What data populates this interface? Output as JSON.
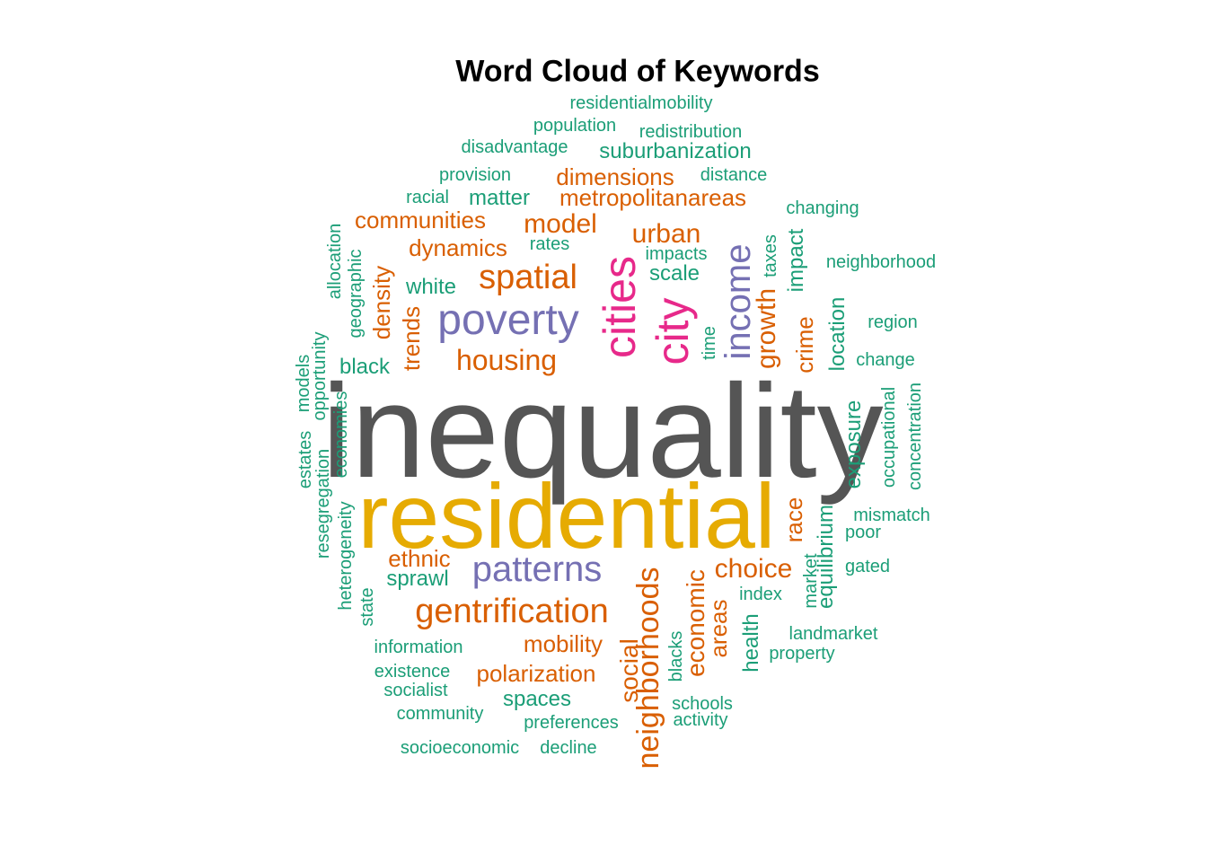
{
  "chart_data": {
    "type": "wordcloud",
    "title": "Word Cloud of Keywords",
    "palette": {
      "green": "#1b9e77",
      "orange": "#d95f02",
      "purple": "#7570b3",
      "pink": "#e7298a",
      "gold": "#e6ab02",
      "gray": "#555555"
    },
    "words": [
      {
        "text": "inequality",
        "tier": 7,
        "color": "gray",
        "vertical": false
      },
      {
        "text": "residential",
        "tier": 6,
        "color": "gold",
        "vertical": false
      },
      {
        "text": "cities",
        "tier": 5,
        "color": "pink",
        "vertical": true
      },
      {
        "text": "city",
        "tier": 5,
        "color": "pink",
        "vertical": true
      },
      {
        "text": "poverty",
        "tier": 4,
        "color": "purple",
        "vertical": false
      },
      {
        "text": "income",
        "tier": 4,
        "color": "purple",
        "vertical": true
      },
      {
        "text": "patterns",
        "tier": 4,
        "color": "purple",
        "vertical": false
      },
      {
        "text": "gentrification",
        "tier": 3,
        "color": "orange",
        "vertical": false
      },
      {
        "text": "neighborhoods",
        "tier": 3,
        "color": "orange",
        "vertical": true
      },
      {
        "text": "spatial",
        "tier": 3,
        "color": "orange",
        "vertical": false
      },
      {
        "text": "housing",
        "tier": 2,
        "color": "orange",
        "vertical": false
      },
      {
        "text": "model",
        "tier": 2,
        "color": "orange",
        "vertical": false
      },
      {
        "text": "urban",
        "tier": 2,
        "color": "orange",
        "vertical": false
      },
      {
        "text": "growth",
        "tier": 2,
        "color": "orange",
        "vertical": true
      },
      {
        "text": "choice",
        "tier": 2,
        "color": "orange",
        "vertical": false
      },
      {
        "text": "economic",
        "tier": 2,
        "color": "orange",
        "vertical": true
      },
      {
        "text": "social",
        "tier": 2,
        "color": "orange",
        "vertical": true
      },
      {
        "text": "dimensions",
        "tier": 2,
        "color": "orange",
        "vertical": false
      },
      {
        "text": "metropolitanareas",
        "tier": 2,
        "color": "orange",
        "vertical": false
      },
      {
        "text": "communities",
        "tier": 2,
        "color": "orange",
        "vertical": false
      },
      {
        "text": "dynamics",
        "tier": 2,
        "color": "orange",
        "vertical": false
      },
      {
        "text": "density",
        "tier": 2,
        "color": "orange",
        "vertical": true
      },
      {
        "text": "trends",
        "tier": 2,
        "color": "orange",
        "vertical": true
      },
      {
        "text": "crime",
        "tier": 2,
        "color": "orange",
        "vertical": true
      },
      {
        "text": "race",
        "tier": 2,
        "color": "orange",
        "vertical": true
      },
      {
        "text": "ethnic",
        "tier": 2,
        "color": "orange",
        "vertical": false
      },
      {
        "text": "mobility",
        "tier": 2,
        "color": "orange",
        "vertical": false
      },
      {
        "text": "polarization",
        "tier": 2,
        "color": "orange",
        "vertical": false
      },
      {
        "text": "areas",
        "tier": 2,
        "color": "orange",
        "vertical": true
      },
      {
        "text": "residentialmobility",
        "tier": 1,
        "color": "green",
        "vertical": false
      },
      {
        "text": "population",
        "tier": 1,
        "color": "green",
        "vertical": false
      },
      {
        "text": "redistribution",
        "tier": 1,
        "color": "green",
        "vertical": false
      },
      {
        "text": "disadvantage",
        "tier": 1,
        "color": "green",
        "vertical": false
      },
      {
        "text": "suburbanization",
        "tier": 1,
        "color": "green",
        "vertical": false
      },
      {
        "text": "provision",
        "tier": 1,
        "color": "green",
        "vertical": false
      },
      {
        "text": "distance",
        "tier": 1,
        "color": "green",
        "vertical": false
      },
      {
        "text": "racial",
        "tier": 1,
        "color": "green",
        "vertical": false
      },
      {
        "text": "matter",
        "tier": 1,
        "color": "green",
        "vertical": false
      },
      {
        "text": "changing",
        "tier": 1,
        "color": "green",
        "vertical": false
      },
      {
        "text": "rates",
        "tier": 1,
        "color": "green",
        "vertical": false
      },
      {
        "text": "impacts",
        "tier": 1,
        "color": "green",
        "vertical": false
      },
      {
        "text": "taxes",
        "tier": 1,
        "color": "green",
        "vertical": true
      },
      {
        "text": "impact",
        "tier": 1,
        "color": "green",
        "vertical": true
      },
      {
        "text": "neighborhood",
        "tier": 1,
        "color": "green",
        "vertical": false
      },
      {
        "text": "white",
        "tier": 1,
        "color": "green",
        "vertical": false
      },
      {
        "text": "scale",
        "tier": 1,
        "color": "green",
        "vertical": false
      },
      {
        "text": "allocation",
        "tier": 1,
        "color": "green",
        "vertical": true
      },
      {
        "text": "geographic",
        "tier": 1,
        "color": "green",
        "vertical": true
      },
      {
        "text": "region",
        "tier": 1,
        "color": "green",
        "vertical": false
      },
      {
        "text": "location",
        "tier": 1,
        "color": "green",
        "vertical": true
      },
      {
        "text": "time",
        "tier": 1,
        "color": "green",
        "vertical": true
      },
      {
        "text": "change",
        "tier": 1,
        "color": "green",
        "vertical": false
      },
      {
        "text": "black",
        "tier": 1,
        "color": "green",
        "vertical": false
      },
      {
        "text": "models",
        "tier": 1,
        "color": "green",
        "vertical": true
      },
      {
        "text": "opportunity",
        "tier": 1,
        "color": "green",
        "vertical": true
      },
      {
        "text": "estates",
        "tier": 1,
        "color": "green",
        "vertical": true
      },
      {
        "text": "economies",
        "tier": 1,
        "color": "green",
        "vertical": true
      },
      {
        "text": "resegregation",
        "tier": 1,
        "color": "green",
        "vertical": true
      },
      {
        "text": "occupational",
        "tier": 1,
        "color": "green",
        "vertical": true
      },
      {
        "text": "concentration",
        "tier": 1,
        "color": "green",
        "vertical": true
      },
      {
        "text": "exposure",
        "tier": 1,
        "color": "green",
        "vertical": true
      },
      {
        "text": "mismatch",
        "tier": 1,
        "color": "green",
        "vertical": false
      },
      {
        "text": "poor",
        "tier": 1,
        "color": "green",
        "vertical": false
      },
      {
        "text": "heterogeneity",
        "tier": 1,
        "color": "green",
        "vertical": true
      },
      {
        "text": "equilibrium",
        "tier": 1,
        "color": "green",
        "vertical": true
      },
      {
        "text": "gated",
        "tier": 1,
        "color": "green",
        "vertical": false
      },
      {
        "text": "sprawl",
        "tier": 1,
        "color": "green",
        "vertical": false
      },
      {
        "text": "market",
        "tier": 1,
        "color": "green",
        "vertical": true
      },
      {
        "text": "index",
        "tier": 1,
        "color": "green",
        "vertical": false
      },
      {
        "text": "state",
        "tier": 1,
        "color": "green",
        "vertical": true
      },
      {
        "text": "landmarket",
        "tier": 1,
        "color": "green",
        "vertical": false
      },
      {
        "text": "information",
        "tier": 1,
        "color": "green",
        "vertical": false
      },
      {
        "text": "health",
        "tier": 1,
        "color": "green",
        "vertical": true
      },
      {
        "text": "property",
        "tier": 1,
        "color": "green",
        "vertical": false
      },
      {
        "text": "blacks",
        "tier": 1,
        "color": "green",
        "vertical": true
      },
      {
        "text": "existence",
        "tier": 1,
        "color": "green",
        "vertical": false
      },
      {
        "text": "socialist",
        "tier": 1,
        "color": "green",
        "vertical": false
      },
      {
        "text": "spaces",
        "tier": 1,
        "color": "green",
        "vertical": false
      },
      {
        "text": "schools",
        "tier": 1,
        "color": "green",
        "vertical": false
      },
      {
        "text": "community",
        "tier": 1,
        "color": "green",
        "vertical": false
      },
      {
        "text": "activity",
        "tier": 1,
        "color": "green",
        "vertical": false
      },
      {
        "text": "preferences",
        "tier": 1,
        "color": "green",
        "vertical": false
      },
      {
        "text": "socioeconomic",
        "tier": 1,
        "color": "green",
        "vertical": false
      },
      {
        "text": "decline",
        "tier": 1,
        "color": "green",
        "vertical": false
      }
    ]
  }
}
